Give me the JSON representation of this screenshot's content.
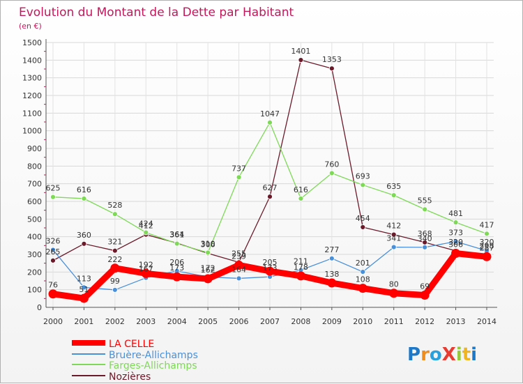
{
  "chart_data": {
    "type": "line",
    "title": "Evolution du Montant de la Dette par Habitant",
    "subtitle": "(en €)",
    "xlabel": "",
    "ylabel": "",
    "ylim": [
      0,
      1500
    ],
    "y_ticks": [
      "0",
      "100",
      "200",
      "300",
      "400",
      "500",
      "600",
      "700",
      "800",
      "900",
      "1000",
      "1100",
      "1200",
      "1300",
      "1400",
      "1500"
    ],
    "categories": [
      "2000",
      "2001",
      "2002",
      "2003",
      "2004",
      "2005",
      "2006",
      "2007",
      "2008",
      "2009",
      "2010",
      "2011",
      "2012",
      "2013",
      "2014"
    ],
    "grid": true,
    "legend_position": "bottom-left",
    "series": [
      {
        "name": "Nozières",
        "color": "#6b1a2a",
        "values": [
          265,
          360,
          321,
          412,
          364,
          306,
          255,
          627,
          1401,
          1353,
          454,
          412,
          368,
          320,
          298
        ],
        "labels": [
          "265",
          "360",
          "321",
          "412",
          "364",
          "306",
          "255",
          "627",
          "1401",
          "1353",
          "454",
          "412",
          "368",
          "320",
          "298"
        ]
      },
      {
        "name": "Farges-Allichamps",
        "color": "#7ed957",
        "values": [
          625,
          616,
          528,
          424,
          361,
          310,
          737,
          1047,
          616,
          760,
          693,
          635,
          555,
          481,
          417
        ],
        "labels": [
          "625",
          "616",
          "528",
          "424",
          "361",
          "310",
          "737",
          "1047",
          "616",
          "760",
          "693",
          "635",
          "555",
          "481",
          "417"
        ]
      },
      {
        "name": "Bruère-Allichamps",
        "color": "#4a90d9",
        "values": [
          326,
          113,
          99,
          167,
          206,
          172,
          164,
          173,
          211,
          277,
          201,
          341,
          340,
          373,
          320
        ],
        "labels": [
          "326",
          "113",
          "99",
          "167",
          "206",
          "172",
          "164",
          "173",
          "211",
          "277",
          "201",
          "341",
          "340",
          "373",
          "320"
        ]
      },
      {
        "name": "LA CELLE",
        "color": "#ff0000",
        "values": [
          76,
          51,
          222,
          192,
          173,
          162,
          239,
          205,
          178,
          138,
          108,
          80,
          69,
          306,
          287
        ],
        "labels": [
          "76",
          "51",
          "222",
          "192",
          "173",
          "162",
          "239",
          "205",
          "178",
          "138",
          "108",
          "80",
          "69",
          "306",
          "287"
        ]
      }
    ]
  },
  "legend": {
    "items": [
      {
        "label": "LA CELLE",
        "color": "#ff0000"
      },
      {
        "label": "Bruère-Allichamps",
        "color": "#4a90d9"
      },
      {
        "label": "Farges-Allichamps",
        "color": "#7ed957"
      },
      {
        "label": "Nozières",
        "color": "#6b1a2a"
      }
    ]
  },
  "logo": {
    "text": "ProXiti"
  }
}
